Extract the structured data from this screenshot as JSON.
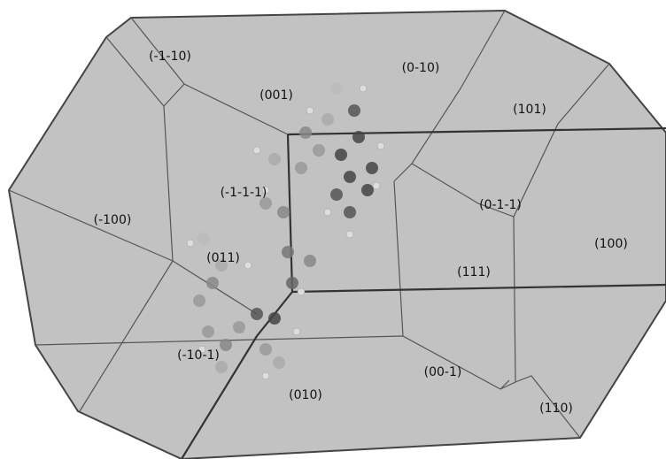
{
  "faces": [
    {
      "label": "(-1-10)"
    },
    {
      "label": "(0-10)"
    },
    {
      "label": "(001)"
    },
    {
      "label": "(101)"
    },
    {
      "label": "(-1-1-1)"
    },
    {
      "label": "(0-1-1)"
    },
    {
      "label": "(-100)"
    },
    {
      "label": "(100)"
    },
    {
      "label": "(011)"
    },
    {
      "label": "(111)"
    },
    {
      "label": "(-10-1)"
    },
    {
      "label": "(00-1)"
    },
    {
      "label": "(010)"
    },
    {
      "label": "(110)"
    }
  ]
}
